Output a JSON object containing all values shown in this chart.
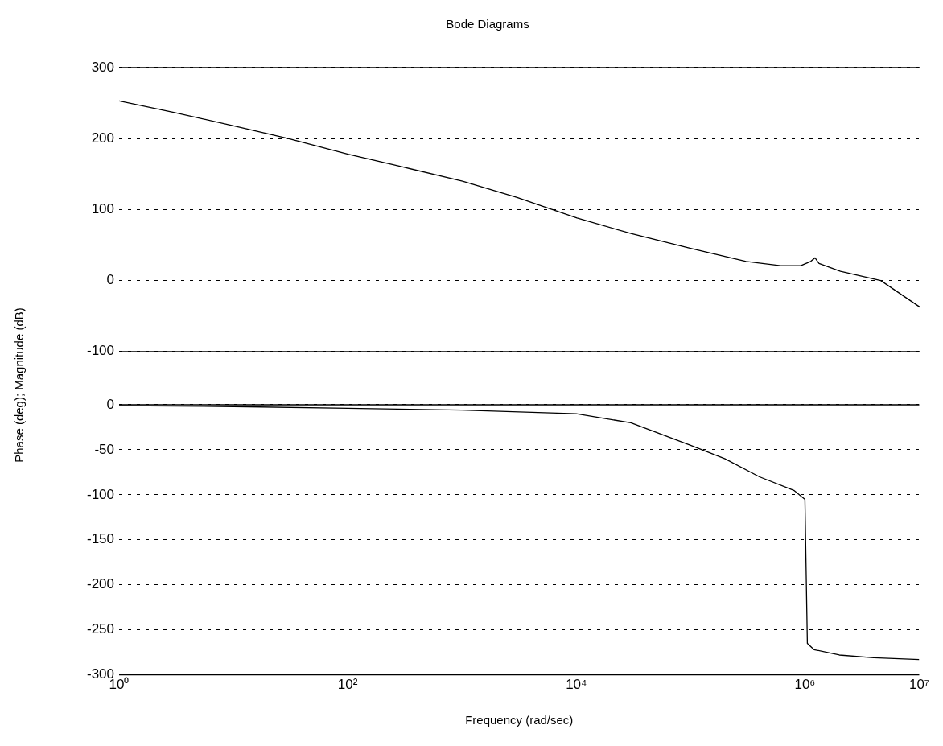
{
  "chart_data": [
    {
      "type": "line",
      "title": "Bode Diagrams",
      "ylabel": "Phase (deg); Magnitude (dB)",
      "log": "x",
      "xlim": [
        1,
        10000000
      ],
      "ylim": [
        -100,
        300
      ],
      "yticks": [
        -100,
        0,
        100,
        200,
        300
      ],
      "grid": "y",
      "tick_labels": "y",
      "legend": false,
      "marker": "none",
      "line_style": "solid",
      "series": [
        {
          "color": "#000000",
          "x": [
            1,
            3,
            10,
            30,
            100,
            300,
            1000,
            3000,
            10000,
            30000,
            100000,
            300000,
            600000,
            900000,
            1100000,
            1200000,
            1300000,
            2000000,
            4500000,
            10000000
          ],
          "values": [
            253,
            237,
            218,
            200,
            178,
            160,
            140,
            117,
            88,
            66,
            45,
            27,
            21,
            21,
            27,
            32,
            24,
            13,
            0,
            -38
          ]
        }
      ]
    },
    {
      "type": "line",
      "xlabel": "Frequency (rad/sec)",
      "log": "x",
      "xlim": [
        1,
        10000000
      ],
      "xticks": [
        {
          "value": 1,
          "label": "10⁰"
        },
        {
          "value": 100,
          "label": "10²"
        },
        {
          "value": 10000,
          "label": "10⁴"
        },
        {
          "value": 1000000,
          "label": "10⁶"
        },
        {
          "value": 10000000,
          "label": "10⁷"
        }
      ],
      "ylim": [
        -300,
        0
      ],
      "yticks": [
        -300,
        -250,
        -200,
        -150,
        -100,
        -50,
        0
      ],
      "grid": "y",
      "legend": false,
      "marker": "none",
      "line_style": "solid",
      "series": [
        {
          "color": "#000000",
          "x": [
            1,
            10,
            100,
            1000,
            10000,
            30000,
            100000,
            200000,
            400000,
            800000,
            1000000,
            1050000,
            1200000,
            2000000,
            4000000,
            10000000
          ],
          "values": [
            -1,
            -2,
            -4,
            -6,
            -10,
            -20,
            -45,
            -60,
            -80,
            -95,
            -105,
            -265,
            -272,
            -278,
            -281,
            -283
          ]
        }
      ]
    }
  ]
}
